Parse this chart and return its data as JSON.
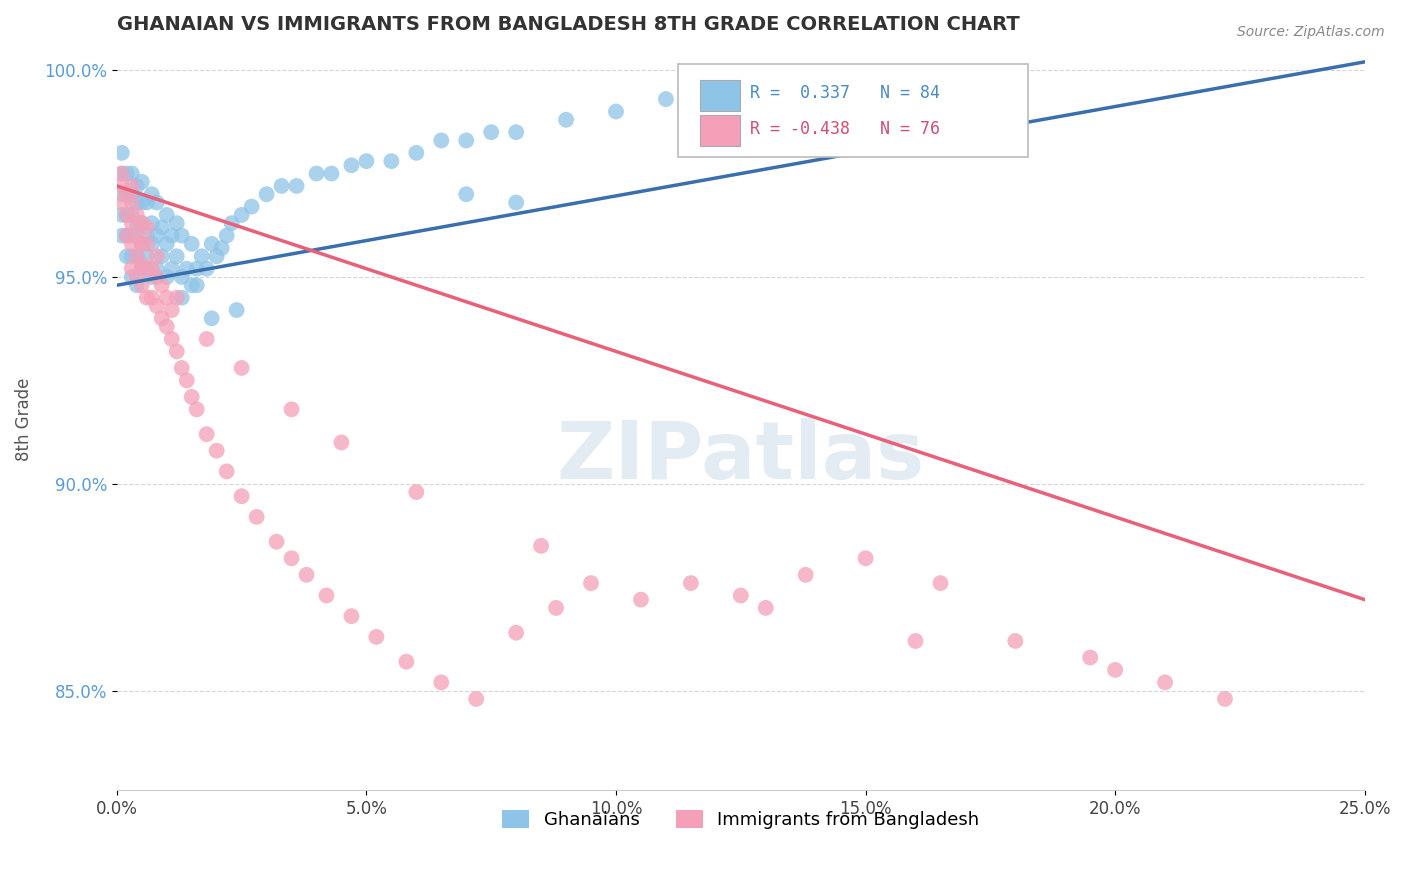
{
  "title": "GHANAIAN VS IMMIGRANTS FROM BANGLADESH 8TH GRADE CORRELATION CHART",
  "source_text": "Source: ZipAtlas.com",
  "ylabel": "8th Grade",
  "watermark": "ZIPatlas",
  "xlim": [
    0.0,
    0.25
  ],
  "ylim": [
    0.826,
    1.005
  ],
  "xticks": [
    0.0,
    0.05,
    0.1,
    0.15,
    0.2,
    0.25
  ],
  "yticks": [
    0.85,
    0.9,
    0.95,
    1.0
  ],
  "xtick_labels": [
    "0.0%",
    "5.0%",
    "10.0%",
    "15.0%",
    "20.0%",
    "25.0%"
  ],
  "ytick_labels": [
    "85.0%",
    "90.0%",
    "95.0%",
    "100.0%"
  ],
  "legend_labels": [
    "Ghanaians",
    "Immigrants from Bangladesh"
  ],
  "blue_color": "#8ec4e8",
  "pink_color": "#f4a0b8",
  "blue_line_color": "#3a6fad",
  "pink_line_color": "#e8607a",
  "R_blue": 0.337,
  "N_blue": 84,
  "R_pink": -0.438,
  "N_pink": 76,
  "blue_trend_x0": 0.0,
  "blue_trend_y0": 0.948,
  "blue_trend_x1": 0.25,
  "blue_trend_y1": 1.002,
  "pink_trend_x0": 0.0,
  "pink_trend_y0": 0.972,
  "pink_trend_x1": 0.25,
  "pink_trend_y1": 0.872,
  "blue_scatter_x": [
    0.001,
    0.001,
    0.001,
    0.001,
    0.001,
    0.002,
    0.002,
    0.002,
    0.002,
    0.002,
    0.003,
    0.003,
    0.003,
    0.003,
    0.003,
    0.003,
    0.004,
    0.004,
    0.004,
    0.004,
    0.004,
    0.005,
    0.005,
    0.005,
    0.005,
    0.005,
    0.006,
    0.006,
    0.006,
    0.007,
    0.007,
    0.007,
    0.007,
    0.008,
    0.008,
    0.008,
    0.009,
    0.009,
    0.01,
    0.01,
    0.01,
    0.011,
    0.011,
    0.012,
    0.012,
    0.013,
    0.013,
    0.014,
    0.015,
    0.015,
    0.016,
    0.017,
    0.018,
    0.019,
    0.02,
    0.021,
    0.022,
    0.023,
    0.025,
    0.027,
    0.03,
    0.033,
    0.036,
    0.04,
    0.043,
    0.047,
    0.05,
    0.055,
    0.06,
    0.065,
    0.07,
    0.075,
    0.08,
    0.09,
    0.1,
    0.11,
    0.12,
    0.13,
    0.07,
    0.08,
    0.013,
    0.016,
    0.019,
    0.024
  ],
  "blue_scatter_y": [
    0.96,
    0.965,
    0.97,
    0.975,
    0.98,
    0.955,
    0.96,
    0.965,
    0.97,
    0.975,
    0.95,
    0.955,
    0.96,
    0.965,
    0.97,
    0.975,
    0.948,
    0.955,
    0.962,
    0.968,
    0.972,
    0.952,
    0.958,
    0.963,
    0.968,
    0.973,
    0.955,
    0.96,
    0.968,
    0.95,
    0.958,
    0.963,
    0.97,
    0.952,
    0.96,
    0.968,
    0.955,
    0.962,
    0.95,
    0.958,
    0.965,
    0.952,
    0.96,
    0.955,
    0.963,
    0.95,
    0.96,
    0.952,
    0.948,
    0.958,
    0.952,
    0.955,
    0.952,
    0.958,
    0.955,
    0.957,
    0.96,
    0.963,
    0.965,
    0.967,
    0.97,
    0.972,
    0.972,
    0.975,
    0.975,
    0.977,
    0.978,
    0.978,
    0.98,
    0.983,
    0.983,
    0.985,
    0.985,
    0.988,
    0.99,
    0.993,
    0.995,
    0.998,
    0.97,
    0.968,
    0.945,
    0.948,
    0.94,
    0.942
  ],
  "pink_scatter_x": [
    0.001,
    0.001,
    0.001,
    0.002,
    0.002,
    0.002,
    0.003,
    0.003,
    0.003,
    0.003,
    0.003,
    0.004,
    0.004,
    0.004,
    0.004,
    0.005,
    0.005,
    0.005,
    0.005,
    0.006,
    0.006,
    0.006,
    0.007,
    0.007,
    0.008,
    0.008,
    0.009,
    0.009,
    0.01,
    0.01,
    0.011,
    0.011,
    0.012,
    0.013,
    0.014,
    0.015,
    0.016,
    0.018,
    0.02,
    0.022,
    0.025,
    0.028,
    0.032,
    0.035,
    0.038,
    0.042,
    0.047,
    0.052,
    0.058,
    0.065,
    0.072,
    0.08,
    0.088,
    0.095,
    0.105,
    0.115,
    0.125,
    0.138,
    0.15,
    0.165,
    0.18,
    0.195,
    0.21,
    0.222,
    0.006,
    0.008,
    0.012,
    0.018,
    0.025,
    0.035,
    0.045,
    0.06,
    0.085,
    0.13,
    0.16,
    0.2
  ],
  "pink_scatter_y": [
    0.968,
    0.972,
    0.975,
    0.96,
    0.965,
    0.97,
    0.952,
    0.958,
    0.963,
    0.968,
    0.972,
    0.95,
    0.955,
    0.96,
    0.965,
    0.948,
    0.953,
    0.958,
    0.963,
    0.945,
    0.952,
    0.958,
    0.945,
    0.952,
    0.943,
    0.95,
    0.94,
    0.948,
    0.938,
    0.945,
    0.935,
    0.942,
    0.932,
    0.928,
    0.925,
    0.921,
    0.918,
    0.912,
    0.908,
    0.903,
    0.897,
    0.892,
    0.886,
    0.882,
    0.878,
    0.873,
    0.868,
    0.863,
    0.857,
    0.852,
    0.848,
    0.864,
    0.87,
    0.876,
    0.872,
    0.876,
    0.873,
    0.878,
    0.882,
    0.876,
    0.862,
    0.858,
    0.852,
    0.848,
    0.962,
    0.955,
    0.945,
    0.935,
    0.928,
    0.918,
    0.91,
    0.898,
    0.885,
    0.87,
    0.862,
    0.855
  ]
}
